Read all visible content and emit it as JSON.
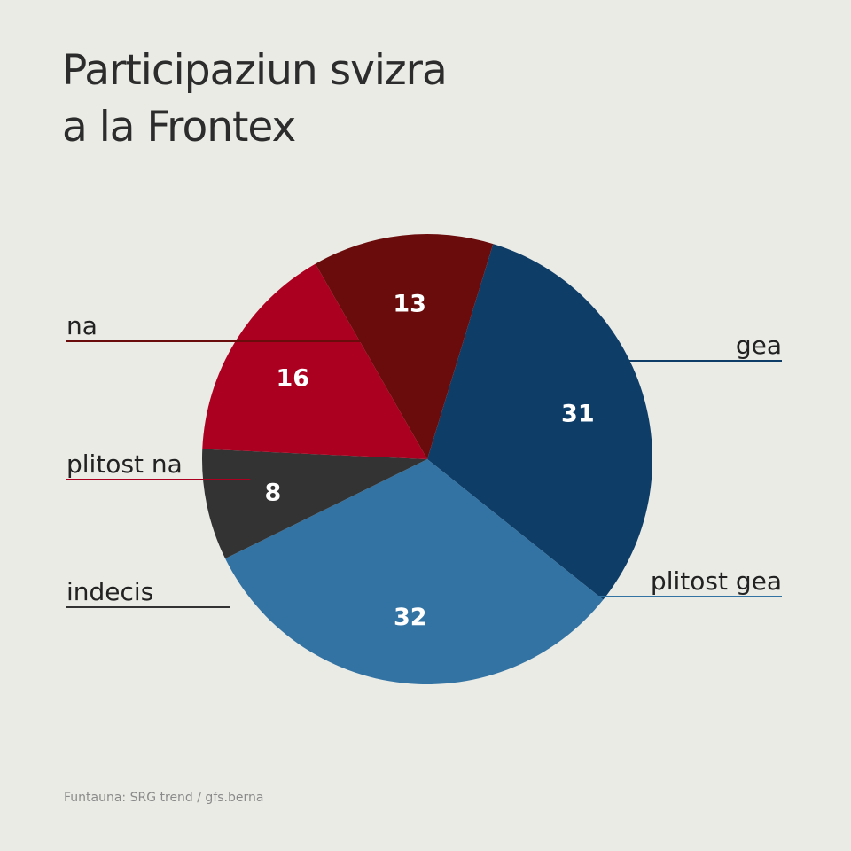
{
  "chart_data": {
    "type": "pie",
    "title_lines": [
      "Participaziun svizra",
      "a la Frontex"
    ],
    "start_angle_deg": 17,
    "slices": [
      {
        "label": "gea",
        "value": 31,
        "color": "#0e3d68",
        "label_side": "right"
      },
      {
        "label": "plitost gea",
        "value": 32,
        "color": "#3373a3",
        "label_side": "right"
      },
      {
        "label": "indecis",
        "value": 8,
        "color": "#333333",
        "label_side": "left"
      },
      {
        "label": "plitost na",
        "value": 16,
        "color": "#ac0020",
        "label_side": "left"
      },
      {
        "label": "na",
        "value": 13,
        "color": "#6a0c0c",
        "label_side": "left"
      }
    ]
  },
  "source": "Funtauna: SRG trend / gfs.berna"
}
